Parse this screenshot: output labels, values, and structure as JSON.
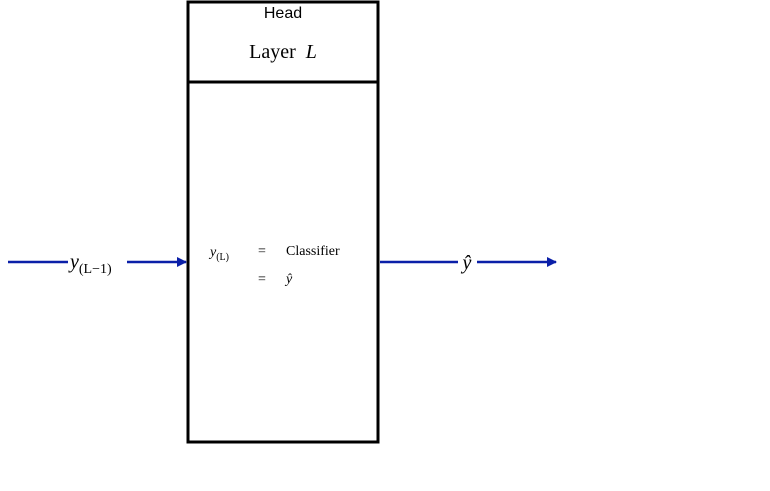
{
  "block": {
    "header": "Head",
    "title_prefix": "Layer",
    "title_var": "L"
  },
  "input": {
    "var": "y",
    "subscript": "(L−1)"
  },
  "equations": {
    "lhs_var": "y",
    "lhs_sub": "(L)",
    "eq1": "=",
    "rhs1": "Classifier",
    "eq2": "=",
    "rhs2": "ŷ"
  },
  "output": {
    "label": "ŷ"
  },
  "colors": {
    "arrow": "#0a1fa8",
    "border": "#000000",
    "text": "#000000"
  }
}
